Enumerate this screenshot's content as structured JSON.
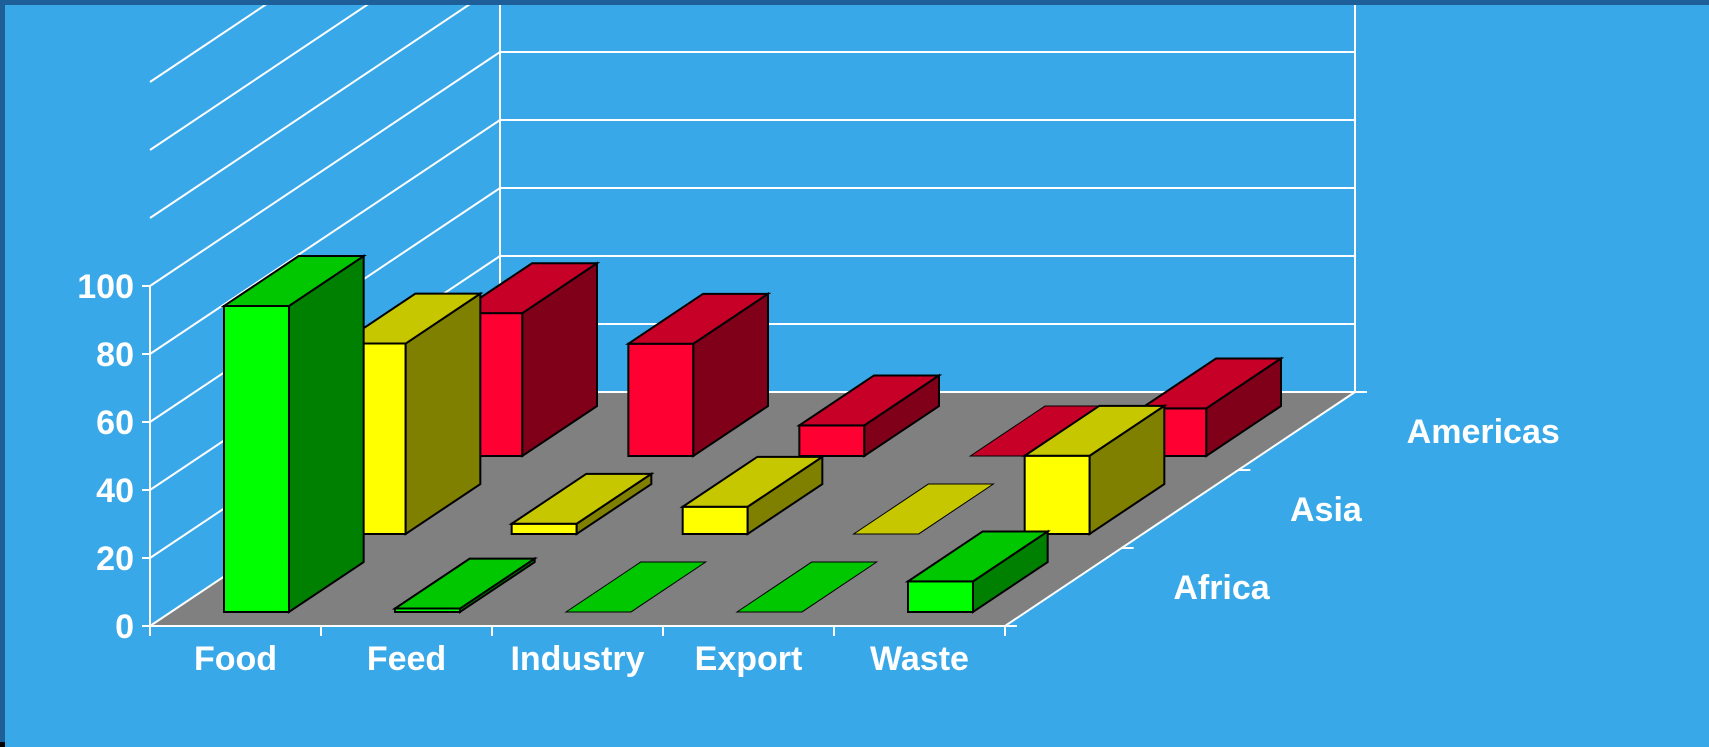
{
  "chart_data": {
    "type": "bar",
    "subtype": "3d-grouped-depth",
    "categories": [
      "Food",
      "Feed",
      "Industry",
      "Export",
      "Waste"
    ],
    "series": [
      {
        "name": "Africa",
        "values": [
          90,
          1,
          0,
          0,
          9
        ],
        "color": "#00ff00"
      },
      {
        "name": "Asia",
        "values": [
          56,
          3,
          8,
          0,
          23
        ],
        "color": "#ffff00"
      },
      {
        "name": "Americas",
        "values": [
          42,
          33,
          9,
          0,
          14
        ],
        "color": "#ff0033"
      }
    ],
    "yticks": [
      "0",
      "20",
      "40",
      "60",
      "80",
      "100"
    ],
    "ylim": [
      0,
      160
    ],
    "grid": true,
    "legend": "right (series labels along depth axis)",
    "colors": {
      "background": "#38a8e8",
      "floor": "#808080",
      "grid": "#ffffff",
      "text": "#ffffff"
    }
  }
}
